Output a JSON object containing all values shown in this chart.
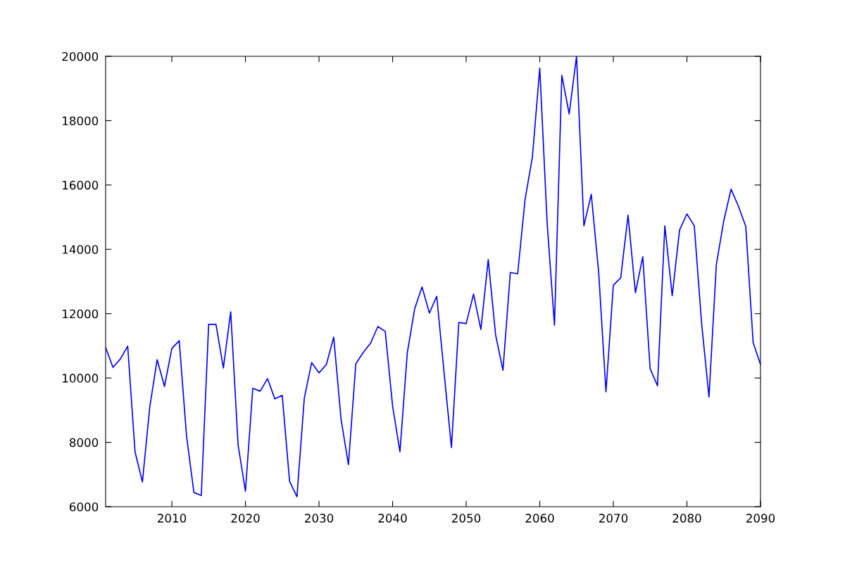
{
  "chart_data": {
    "type": "line",
    "x": [
      2001,
      2002,
      2003,
      2004,
      2005,
      2006,
      2007,
      2008,
      2009,
      2010,
      2011,
      2012,
      2013,
      2014,
      2015,
      2016,
      2017,
      2018,
      2019,
      2020,
      2021,
      2022,
      2023,
      2024,
      2025,
      2026,
      2027,
      2028,
      2029,
      2030,
      2031,
      2032,
      2033,
      2034,
      2035,
      2036,
      2037,
      2038,
      2039,
      2040,
      2041,
      2042,
      2043,
      2044,
      2045,
      2046,
      2047,
      2048,
      2049,
      2050,
      2051,
      2052,
      2053,
      2054,
      2055,
      2056,
      2057,
      2058,
      2059,
      2060,
      2061,
      2062,
      2063,
      2064,
      2065,
      2066,
      2067,
      2068,
      2069,
      2070,
      2071,
      2072,
      2073,
      2074,
      2075,
      2076,
      2077,
      2078,
      2079,
      2080,
      2081,
      2082,
      2083,
      2084,
      2085,
      2086,
      2087,
      2088,
      2089,
      2090
    ],
    "series": [
      {
        "color": "#0000ff",
        "values": [
          10950,
          10330,
          10590,
          10990,
          7700,
          6770,
          9100,
          10570,
          9740,
          10920,
          11160,
          8190,
          6440,
          6350,
          11670,
          11670,
          10310,
          12060,
          7930,
          6480,
          9680,
          9590,
          9980,
          9350,
          9460,
          6790,
          6310,
          9370,
          10480,
          10160,
          10420,
          11270,
          8710,
          7310,
          10440,
          10790,
          11080,
          11600,
          11450,
          9130,
          7710,
          10790,
          12150,
          12830,
          12020,
          12540,
          10160,
          7840,
          11730,
          11690,
          12610,
          11510,
          13680,
          11340,
          10240,
          13280,
          13240,
          15540,
          16870,
          19630,
          14840,
          11640,
          19410,
          18210,
          20000,
          14730,
          15710,
          13310,
          9570,
          12890,
          13110,
          15060,
          12650,
          13770,
          10290,
          9760,
          14730,
          12560,
          14600,
          15100,
          14730,
          11690,
          9410,
          13530,
          14880,
          15870,
          15340,
          14710,
          11100,
          10420
        ]
      }
    ],
    "xlim": [
      2001,
      2090
    ],
    "xticks": [
      2010,
      2020,
      2030,
      2040,
      2050,
      2060,
      2070,
      2080,
      2090
    ],
    "ylim": [
      6000,
      20000
    ],
    "yticks": [
      6000,
      8000,
      10000,
      12000,
      14000,
      16000,
      18000,
      20000
    ],
    "grid": false,
    "legend": false,
    "line_style": "solid"
  }
}
